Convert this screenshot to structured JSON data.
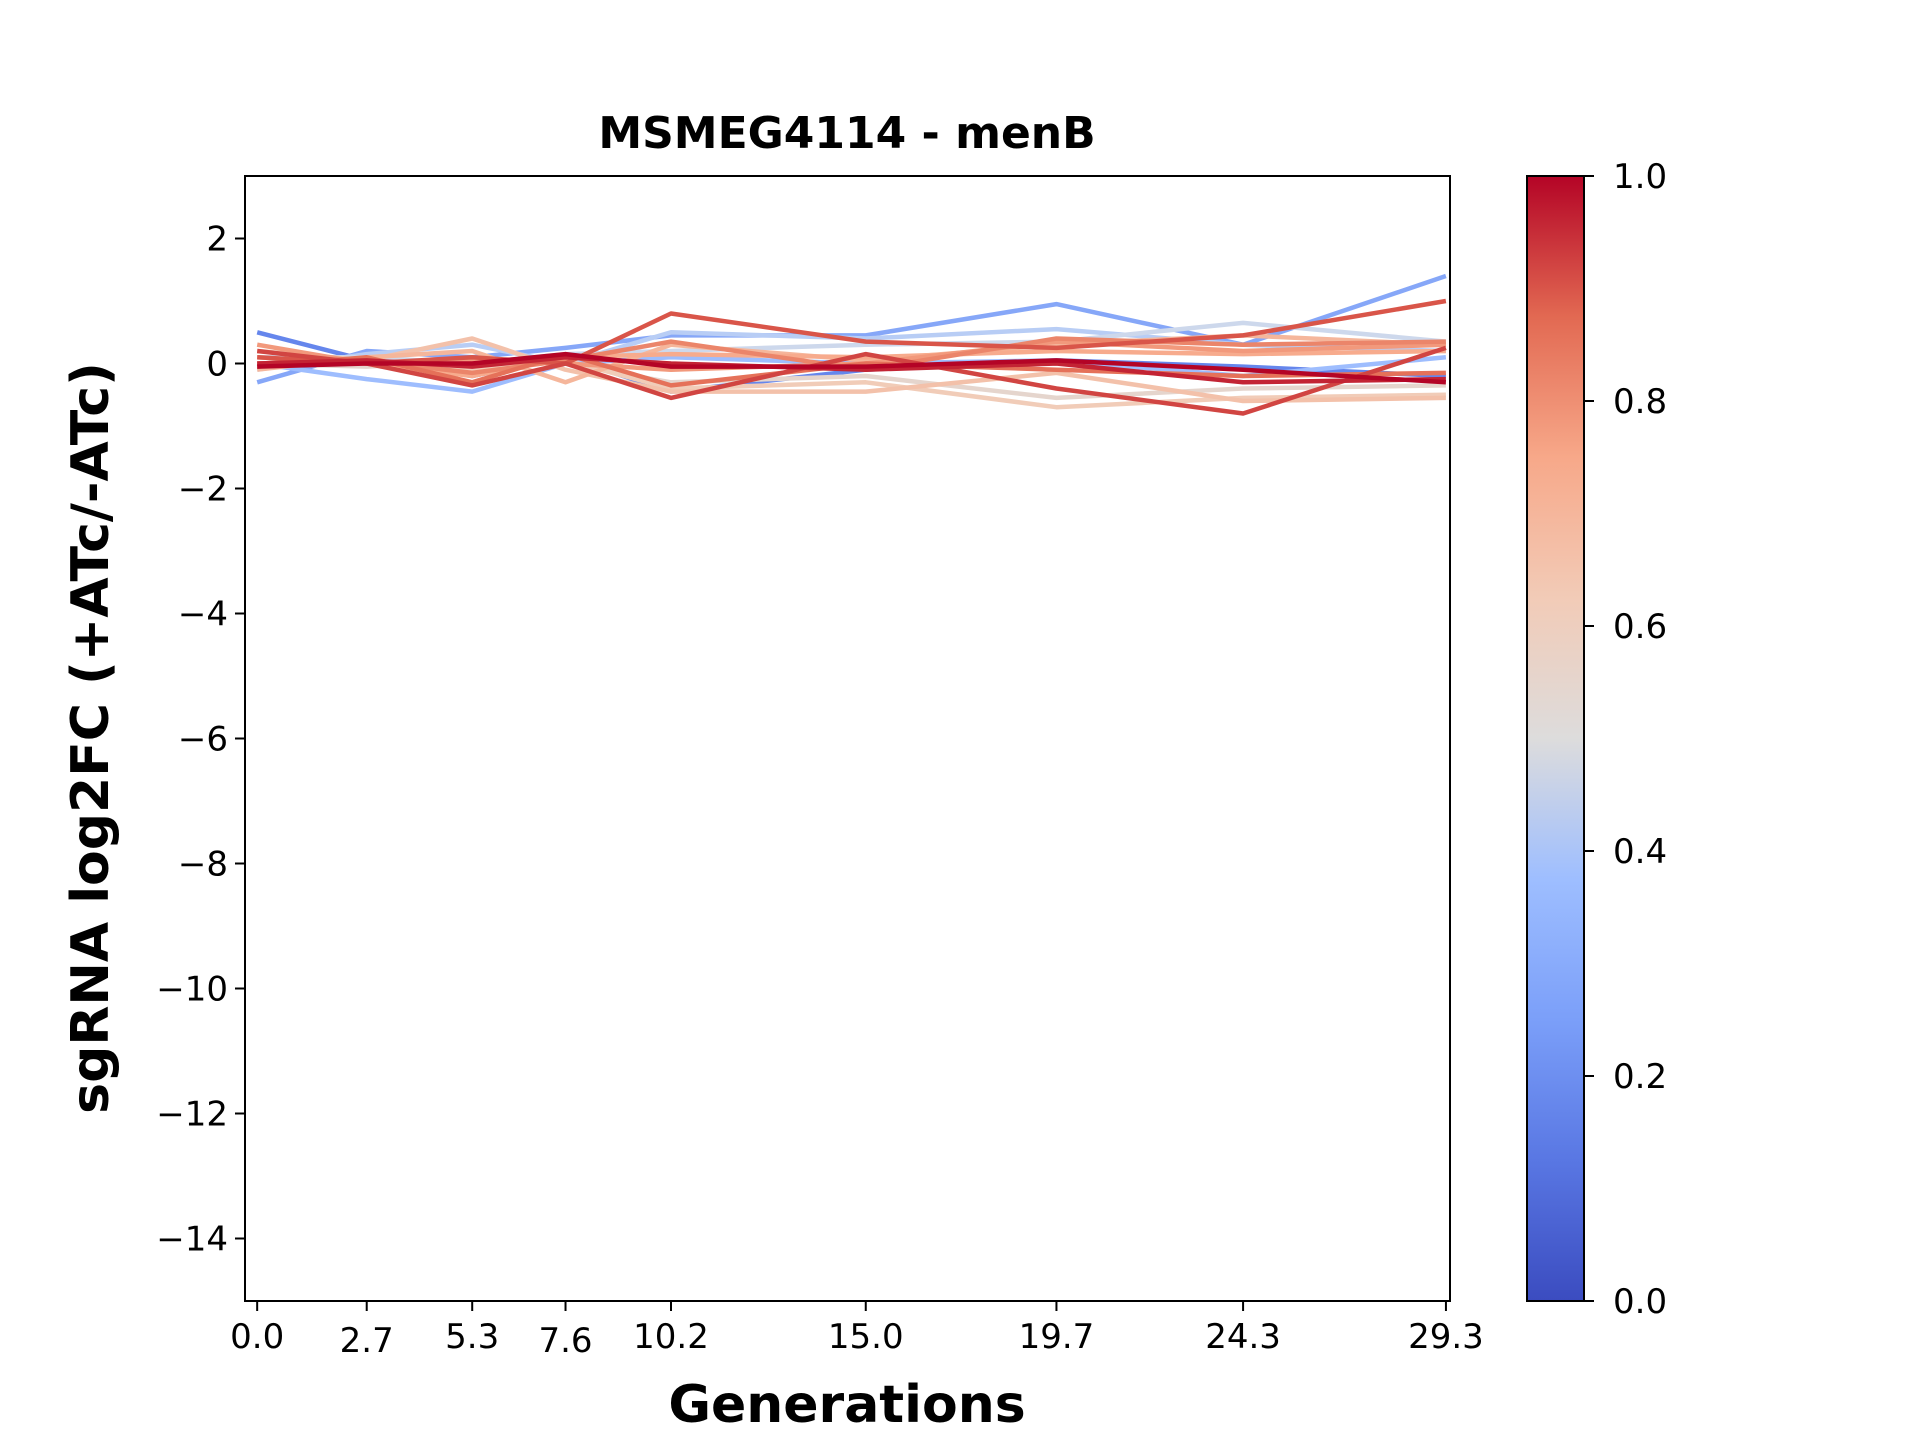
{
  "chart_data": {
    "type": "line",
    "title": "MSMEG4114 - menB",
    "xlabel": "Generations",
    "ylabel": "sgRNA log2FC (+ATc/-ATc)",
    "x": [
      0.0,
      2.7,
      5.3,
      7.6,
      10.2,
      15.0,
      19.7,
      24.3,
      29.3
    ],
    "x_tick_labels": [
      "0.0",
      "2.7",
      "5.3",
      "7.6",
      "10.2",
      "15.0",
      "19.7",
      "24.3",
      "29.3"
    ],
    "ylim": [
      -15,
      3
    ],
    "xlim": [
      -0.3,
      29.4
    ],
    "y_ticks": [
      2,
      0,
      -2,
      -4,
      -6,
      -8,
      -10,
      -12,
      -14
    ],
    "y_tick_labels": [
      "2",
      "0",
      "−2",
      "−4",
      "−6",
      "−8",
      "−10",
      "−12",
      "−14"
    ],
    "grid": false,
    "colormap": "coolwarm",
    "colorbar": {
      "range": [
        0.0,
        1.0
      ],
      "ticks": [
        0.0,
        0.2,
        0.4,
        0.6,
        0.8,
        1.0
      ],
      "tick_labels": [
        "0.0",
        "0.2",
        "0.4",
        "0.6",
        "0.8",
        "1.0"
      ],
      "colors": [
        "#3b4cc0",
        "#6788ee",
        "#9abbff",
        "#c9d7f0",
        "#dddcdc",
        "#f2cbb7",
        "#f7a889",
        "#e26952",
        "#b40426"
      ]
    },
    "series": [
      {
        "color_value": 0.12,
        "y": [
          0.5,
          0.05,
          -0.2,
          0.1,
          -0.45,
          -0.1,
          0.05,
          -0.05,
          -0.2
        ]
      },
      {
        "color_value": 0.2,
        "y": [
          -0.3,
          0.2,
          0.1,
          0.25,
          0.45,
          0.45,
          0.95,
          0.3,
          1.4
        ]
      },
      {
        "color_value": 0.26,
        "y": [
          0.0,
          -0.25,
          -0.45,
          0.0,
          0.1,
          0.0,
          0.05,
          -0.2,
          0.1
        ]
      },
      {
        "color_value": 0.33,
        "y": [
          -0.1,
          0.15,
          0.3,
          0.0,
          0.5,
          0.4,
          0.55,
          0.3,
          0.2
        ]
      },
      {
        "color_value": 0.4,
        "y": [
          0.1,
          0.1,
          0.0,
          0.15,
          0.2,
          0.3,
          0.35,
          0.65,
          0.35
        ]
      },
      {
        "color_value": 0.55,
        "y": [
          0.0,
          -0.05,
          0.05,
          0.0,
          -0.3,
          -0.2,
          -0.55,
          -0.4,
          -0.35
        ]
      },
      {
        "color_value": 0.62,
        "y": [
          0.0,
          0.0,
          -0.1,
          0.05,
          -0.4,
          -0.3,
          -0.7,
          -0.55,
          -0.5
        ]
      },
      {
        "color_value": 0.66,
        "y": [
          0.2,
          0.05,
          0.4,
          -0.1,
          -0.45,
          -0.45,
          -0.15,
          -0.6,
          -0.55
        ]
      },
      {
        "color_value": 0.7,
        "y": [
          -0.1,
          0.1,
          0.2,
          -0.3,
          0.3,
          0.05,
          0.3,
          0.45,
          0.3
        ]
      },
      {
        "color_value": 0.74,
        "y": [
          0.1,
          0.0,
          -0.2,
          0.1,
          0.15,
          0.1,
          0.2,
          0.15,
          0.2
        ]
      },
      {
        "color_value": 0.78,
        "y": [
          0.3,
          0.0,
          0.05,
          0.0,
          -0.1,
          0.0,
          0.35,
          0.2,
          0.3
        ]
      },
      {
        "color_value": 0.82,
        "y": [
          0.0,
          0.05,
          -0.15,
          0.05,
          0.35,
          -0.1,
          0.4,
          0.3,
          0.35
        ]
      },
      {
        "color_value": 0.86,
        "y": [
          -0.05,
          0.1,
          -0.3,
          0.15,
          -0.35,
          0.0,
          -0.1,
          -0.2,
          -0.15
        ]
      },
      {
        "color_value": 0.9,
        "y": [
          0.1,
          0.0,
          0.1,
          0.0,
          0.8,
          0.35,
          0.25,
          0.45,
          1.0
        ]
      },
      {
        "color_value": 0.92,
        "y": [
          0.2,
          0.0,
          -0.35,
          0.0,
          -0.55,
          0.15,
          -0.4,
          -0.8,
          0.25
        ]
      },
      {
        "color_value": 0.96,
        "y": [
          0.0,
          0.05,
          -0.05,
          0.1,
          0.0,
          -0.1,
          0.0,
          -0.3,
          -0.25
        ]
      },
      {
        "color_value": 1.0,
        "y": [
          -0.05,
          0.0,
          0.0,
          0.15,
          -0.05,
          -0.05,
          0.05,
          -0.1,
          -0.3
        ]
      }
    ]
  }
}
